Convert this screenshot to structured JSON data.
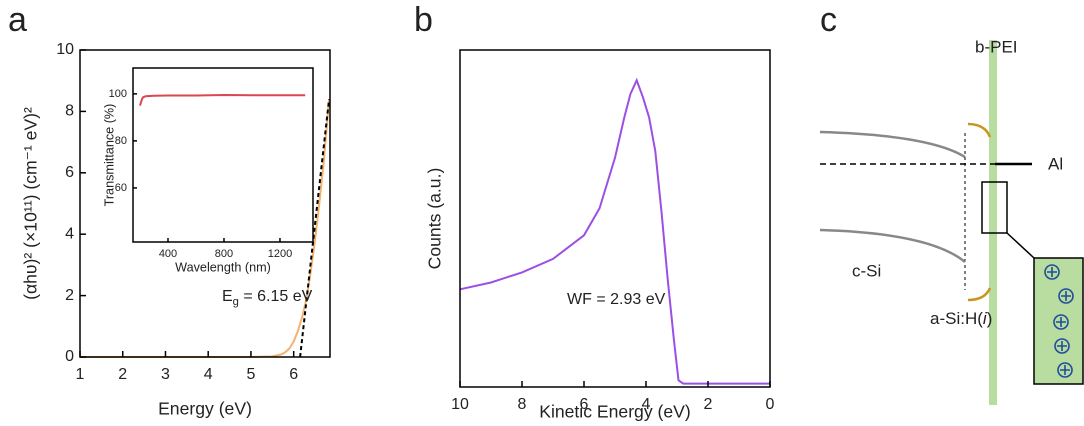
{
  "panel_labels": [
    "a",
    "b",
    "c"
  ],
  "chart_data": [
    {
      "type": "line",
      "xlabel": "Energy (eV)",
      "ylabel": "(αhυ)² (×10¹¹) (cm⁻¹ eV)²",
      "xlim": [
        1,
        6.85
      ],
      "ylim": [
        0,
        10
      ],
      "xticks": [
        1,
        2,
        3,
        4,
        5,
        6
      ],
      "yticks": [
        0,
        2,
        4,
        6,
        8,
        10
      ],
      "annotation": {
        "main": "E",
        "sub": "g",
        "rest": " = 6.15 eV"
      },
      "series": [
        {
          "color": "#f2b36f",
          "x": [
            1,
            2,
            3,
            4,
            5,
            5.5,
            5.7,
            5.8,
            5.9,
            6.0,
            6.1,
            6.2,
            6.3,
            6.4,
            6.5,
            6.6,
            6.7,
            6.83
          ],
          "values": [
            0,
            0,
            0,
            0,
            0,
            0.02,
            0.08,
            0.15,
            0.28,
            0.5,
            0.85,
            1.3,
            1.9,
            2.8,
            3.8,
            5.0,
            6.3,
            8.4
          ]
        },
        {
          "color": "#000000",
          "dash": true,
          "x": [
            6.15,
            6.83
          ],
          "values": [
            0,
            8.4
          ]
        }
      ]
    },
    {
      "type": "line",
      "xlabel": "Wavelength (nm)",
      "ylabel": "Transmittance (%)",
      "xlim": [
        150,
        1436
      ],
      "ylim": [
        37,
        111
      ],
      "xticks": [
        400,
        800,
        1200
      ],
      "yticks": [
        60,
        80,
        100
      ],
      "series": [
        {
          "color": "#d9474f",
          "x": [
            200,
            210,
            220,
            240,
            300,
            400,
            600,
            800,
            1000,
            1200,
            1380
          ],
          "values": [
            95,
            97,
            98.5,
            99,
            99.2,
            99.3,
            99.3,
            99.5,
            99.4,
            99.4,
            99.4
          ]
        }
      ]
    },
    {
      "type": "line",
      "xlabel": "Kinetic Energy (eV)",
      "ylabel": "Counts (a.u.)",
      "xlim": [
        10,
        0
      ],
      "ylim": [
        0,
        1
      ],
      "xticks": [
        10,
        8,
        6,
        4,
        2,
        0
      ],
      "annotation": {
        "main": "WF = 2.93 eV"
      },
      "series": [
        {
          "color": "#9b4fe3",
          "x": [
            10,
            9,
            8,
            7,
            6,
            5.5,
            5,
            4.7,
            4.5,
            4.3,
            4.1,
            3.9,
            3.7,
            3.5,
            3.3,
            3.1,
            2.95,
            2.8,
            2,
            1,
            0
          ],
          "values": [
            0.29,
            0.31,
            0.34,
            0.38,
            0.45,
            0.53,
            0.68,
            0.8,
            0.87,
            0.91,
            0.86,
            0.8,
            0.7,
            0.52,
            0.32,
            0.14,
            0.02,
            0.01,
            0.01,
            0.01,
            0.01
          ]
        }
      ]
    }
  ],
  "diagram": {
    "top_label": "b-PEI",
    "metal": "Al",
    "substrate": "c-Si",
    "passivation": {
      "before": "a-Si:H(",
      "italic": "i",
      "after": ")"
    }
  }
}
